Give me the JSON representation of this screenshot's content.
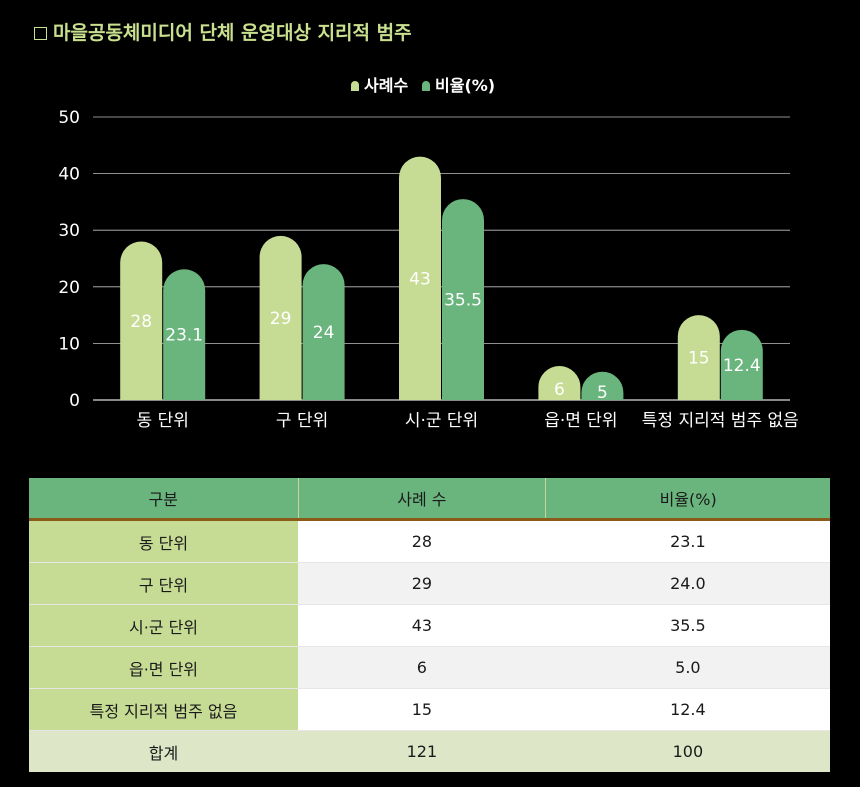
{
  "title": "마을공동체미디어 단체 운영대상 지리적 범주",
  "colors": {
    "title": "#c9e08f",
    "series1": "#c6dc95",
    "series2": "#6ab57e",
    "header": "#6ab57e",
    "category_cell": "#c6dc95",
    "total_row": "#dde6c6"
  },
  "chart_data": {
    "type": "bar",
    "categories": [
      "동 단위",
      "구 단위",
      "시·군 단위",
      "읍·면 단위",
      "특정 지리적 범주 없음"
    ],
    "series": [
      {
        "name": "사례수",
        "values": [
          28,
          29,
          43,
          6,
          15
        ],
        "labels": [
          "28",
          "29",
          "43",
          "6",
          "15"
        ],
        "color": "#c6dc95"
      },
      {
        "name": "비율(%)",
        "values": [
          23.1,
          24,
          35.5,
          5,
          12.4
        ],
        "labels": [
          "23.1",
          "24",
          "35.5",
          "5",
          "12.4"
        ],
        "color": "#6ab57e"
      }
    ],
    "ylim": [
      0,
      50
    ],
    "yticks": [
      0,
      10,
      20,
      30,
      40,
      50
    ],
    "grid": true,
    "legend": "top-center"
  },
  "table": {
    "headers": [
      "구분",
      "사례 수",
      "비율(%)"
    ],
    "rows": [
      [
        "동 단위",
        "28",
        "23.1"
      ],
      [
        "구 단위",
        "29",
        "24.0"
      ],
      [
        "시·군 단위",
        "43",
        "35.5"
      ],
      [
        "읍·면 단위",
        "6",
        "5.0"
      ],
      [
        "특정 지리적 범주 없음",
        "15",
        "12.4"
      ]
    ],
    "total": [
      "합계",
      "121",
      "100"
    ]
  }
}
